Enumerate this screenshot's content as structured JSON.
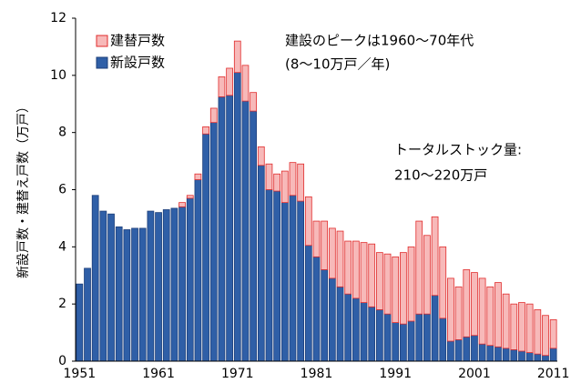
{
  "chart_data": {
    "type": "stacked_bar",
    "y_label": "新設戸数・建替え戸数（万戸）",
    "annotations": [
      "建設のピークは1960〜70年代",
      "(8〜10万戸／年)",
      "トータルストック量:",
      "210〜220万戸"
    ],
    "categories": [
      "1951",
      null,
      null,
      null,
      null,
      null,
      null,
      null,
      null,
      null,
      "1961",
      null,
      null,
      null,
      null,
      null,
      null,
      null,
      null,
      null,
      "1971",
      null,
      null,
      null,
      null,
      null,
      null,
      null,
      null,
      null,
      "1981",
      null,
      null,
      null,
      null,
      null,
      null,
      null,
      null,
      null,
      "1991",
      null,
      null,
      null,
      null,
      null,
      null,
      null,
      null,
      null,
      "2001",
      null,
      null,
      null,
      null,
      null,
      null,
      null,
      null,
      null,
      "2011"
    ],
    "series": [
      {
        "name": "新設戸数",
        "color": "#2f5fa7",
        "values": [
          2.7,
          3.25,
          5.8,
          5.25,
          5.15,
          4.7,
          4.6,
          4.65,
          4.65,
          5.25,
          5.2,
          5.3,
          5.35,
          5.4,
          5.7,
          6.35,
          7.95,
          8.35,
          9.25,
          9.3,
          10.1,
          9.1,
          8.75,
          6.85,
          6.0,
          5.95,
          5.55,
          5.8,
          5.6,
          4.05,
          3.65,
          3.2,
          2.9,
          2.6,
          2.35,
          2.2,
          2.05,
          1.9,
          1.8,
          1.65,
          1.35,
          1.3,
          1.4,
          1.65,
          1.65,
          2.3,
          1.5,
          0.7,
          0.75,
          0.85,
          0.9,
          0.6,
          0.55,
          0.5,
          0.45,
          0.4,
          0.35,
          0.3,
          0.25,
          0.2,
          0.45
        ]
      },
      {
        "name": "建替戸数",
        "color": "#f7b9b9",
        "values": [
          0,
          0,
          0,
          0,
          0,
          0,
          0,
          0,
          0,
          0,
          0,
          0,
          0,
          0.15,
          0.1,
          0.2,
          0.25,
          0.5,
          0.7,
          0.95,
          1.1,
          1.25,
          0.65,
          0.65,
          0.9,
          0.6,
          1.1,
          1.15,
          1.3,
          1.7,
          1.25,
          1.7,
          1.75,
          1.95,
          1.85,
          2.0,
          2.1,
          2.2,
          2.0,
          2.1,
          2.3,
          2.5,
          2.6,
          3.25,
          2.75,
          2.75,
          2.5,
          2.2,
          1.85,
          2.35,
          2.2,
          2.3,
          2.05,
          2.25,
          1.9,
          1.6,
          1.7,
          1.7,
          1.55,
          1.4,
          1.0
        ]
      }
    ],
    "ylim": [
      0,
      12
    ],
    "yticks": [
      0,
      2,
      4,
      6,
      8,
      10,
      12
    ],
    "legend": "upper left"
  }
}
